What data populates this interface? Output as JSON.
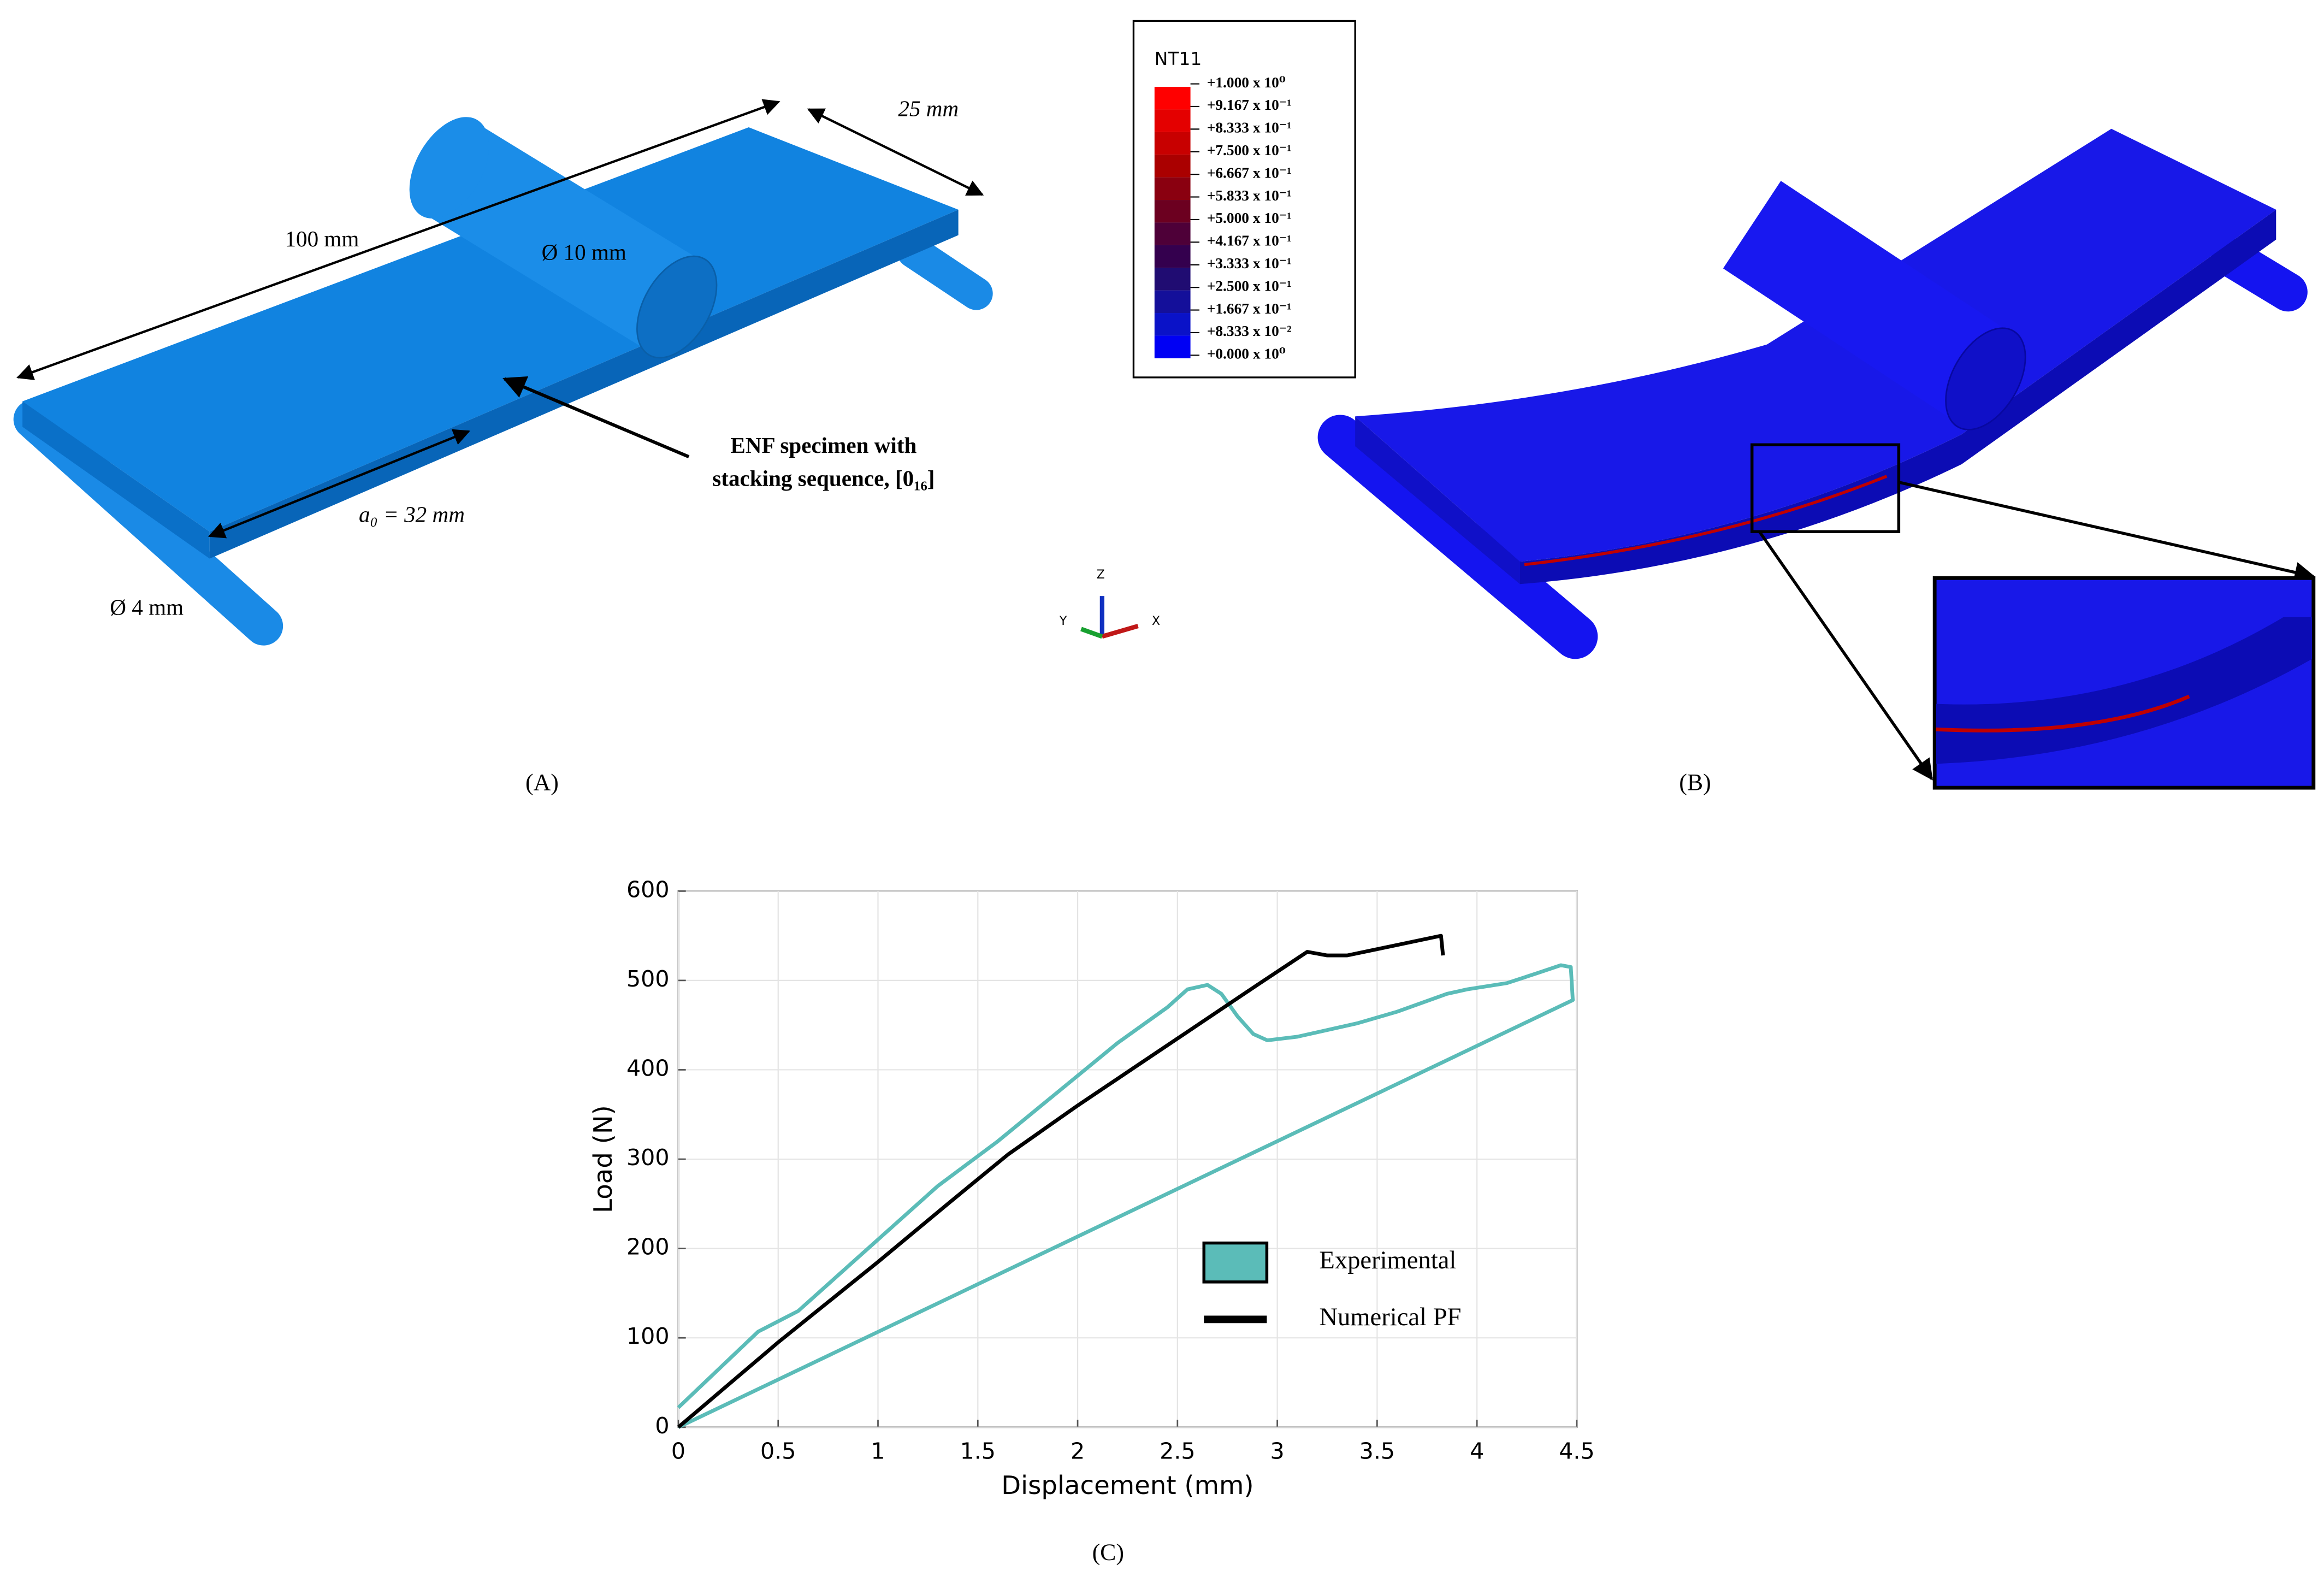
{
  "panel_a": {
    "label": "(A)",
    "length": "100 mm",
    "width": "25 mm",
    "loading_diameter": "Ø 10 mm",
    "support_diameter": "Ø 4 mm",
    "crack_length": "a₀ = 32 mm",
    "specimen_note": [
      "ENF specimen with",
      "stacking sequence, [0₁₆]"
    ],
    "triad": [
      "Z",
      "Y",
      "X"
    ]
  },
  "panel_b": {
    "label": "(B)",
    "legend_title": "NT11",
    "legend_labels": [
      "+1.000 x 10⁰",
      "+9.167 x 10⁻¹",
      "+8.333 x 10⁻¹",
      "+7.500 x 10⁻¹",
      "+6.667 x 10⁻¹",
      "+5.833 x 10⁻¹",
      "+5.000 x 10⁻¹",
      "+4.167 x 10⁻¹",
      "+3.333 x 10⁻¹",
      "+2.500 x 10⁻¹",
      "+1.667 x 10⁻¹",
      "+8.333 x 10⁻²",
      "+0.000 x 10⁰"
    ],
    "legend_colors": [
      "#ff0000",
      "#e40000",
      "#c80000",
      "#aa0000",
      "#8a0010",
      "#6c0020",
      "#4e0038",
      "#34004e",
      "#200c72",
      "#140f9a",
      "#0a12c8",
      "#0000f4"
    ]
  },
  "chart_data": {
    "type": "line",
    "panel_label": "(C)",
    "x_label": "Displacement (mm)",
    "y_label": "Load (N)",
    "xlim": [
      0,
      4.5
    ],
    "ylim": [
      0,
      600
    ],
    "xticks": [
      0,
      0.5,
      1,
      1.5,
      2,
      2.5,
      3,
      3.5,
      4,
      4.5
    ],
    "yticks": [
      0,
      100,
      200,
      300,
      400,
      500,
      600
    ],
    "grid": true,
    "legend_location": "lower right",
    "series": [
      {
        "name": "Experimental",
        "color": "#5bbcb8",
        "x": [
          0,
          0.4,
          0.6,
          0.9,
          1.3,
          1.6,
          1.9,
          2.2,
          2.45,
          2.55,
          2.65,
          2.72,
          2.8,
          2.88,
          2.95,
          3.1,
          3.4,
          3.6,
          3.85,
          3.95,
          4.15,
          4.3,
          4.42,
          4.47,
          4.48,
          0
        ],
        "values": [
          22,
          107,
          130,
          190,
          270,
          320,
          375,
          430,
          470,
          490,
          495,
          485,
          460,
          440,
          433,
          437,
          452,
          465,
          485,
          490,
          497,
          508,
          517,
          515,
          478,
          0
        ]
      },
      {
        "name": "Numerical PF",
        "color": "#000000",
        "x": [
          0,
          0.5,
          1,
          1.35,
          1.65,
          2,
          2.3,
          2.6,
          2.9,
          3.15,
          3.25,
          3.35,
          3.5,
          3.82,
          3.83
        ],
        "values": [
          0,
          95,
          185,
          250,
          305,
          360,
          405,
          450,
          495,
          532,
          528,
          528,
          535,
          550,
          528
        ]
      }
    ]
  }
}
